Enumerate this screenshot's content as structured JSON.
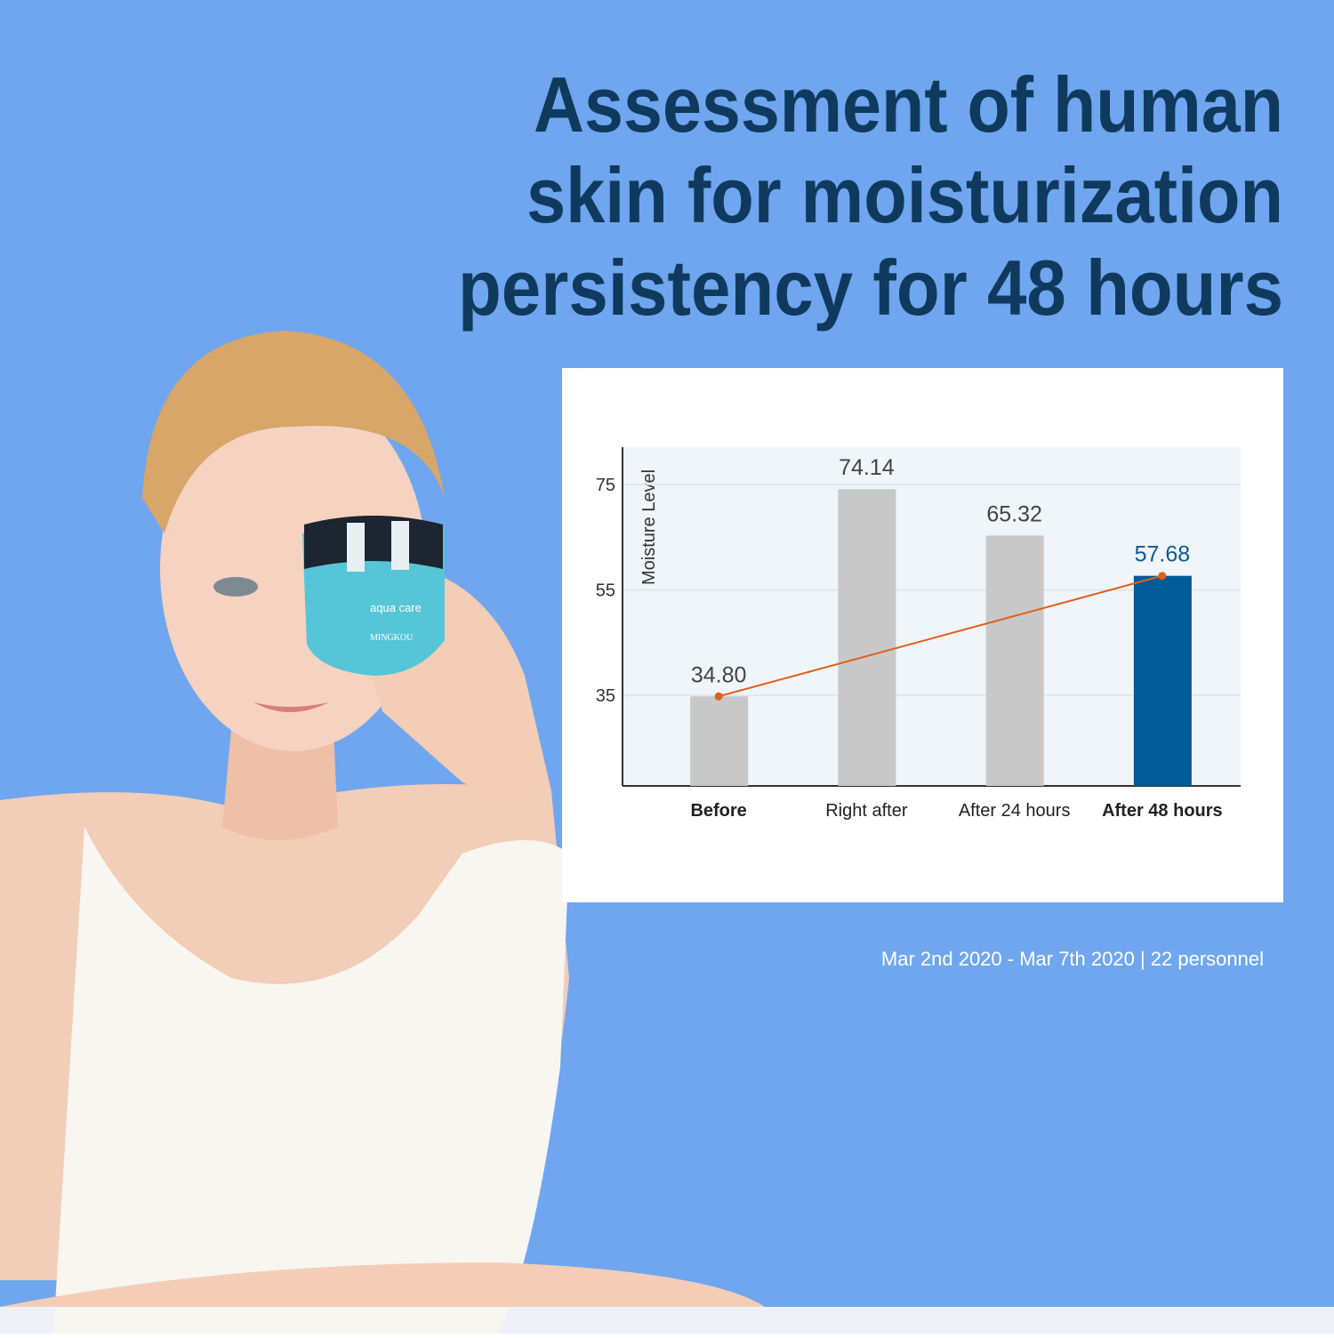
{
  "header": {
    "title_lines": [
      "Assessment of human",
      "skin for moisturization",
      "persistency for 48 hours"
    ]
  },
  "product": {
    "brand": "aqua care",
    "maker": "MINGKOU"
  },
  "chart_data": {
    "type": "bar",
    "y_axis_label": "Moisture Level",
    "categories": [
      "Before",
      "Right after",
      "After 24 hours",
      "After 48 hours"
    ],
    "bold_categories": [
      0,
      3
    ],
    "series": [
      {
        "values": [
          34.8,
          74.14,
          65.32,
          57.68
        ],
        "value_labels": [
          "34.80",
          "74.14",
          "65.32",
          "57.68"
        ],
        "colors": [
          "#c8c8c8",
          "#c8c8c8",
          "#c8c8c8",
          "#005b96"
        ],
        "label_colors": [
          "#444444",
          "#444444",
          "#444444",
          "#0b5a93"
        ]
      }
    ],
    "trend": {
      "from": 0,
      "to": 3,
      "color": "#e0601a"
    },
    "ylim": [
      17.8,
      82.1
    ],
    "yticks": [
      35,
      55,
      75
    ],
    "grid": true
  },
  "footnote": "Mar 2nd 2020 - Mar 7th 2020 | 22 personnel"
}
